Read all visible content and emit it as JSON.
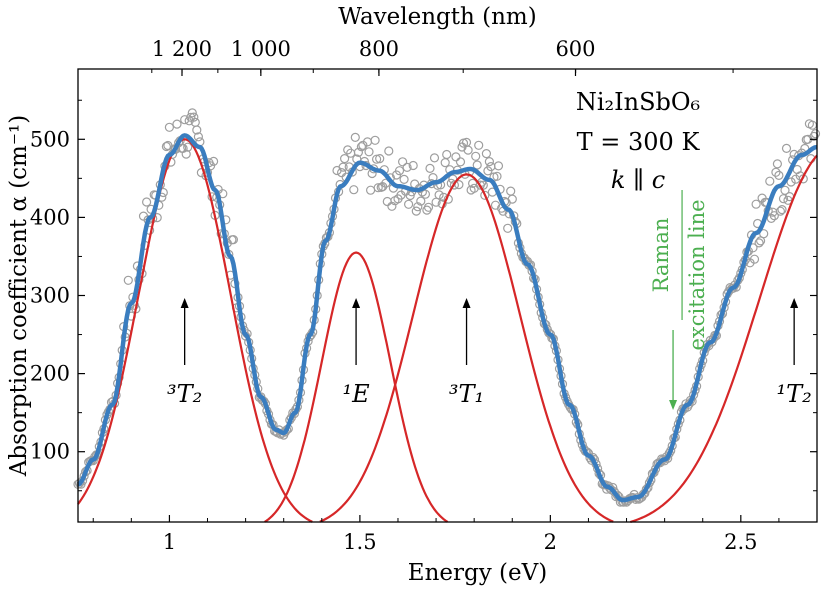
{
  "chart_data": {
    "type": "scatter",
    "xlabel": "Energy (eV)",
    "ylabel": "Absorption coefficient α (cm⁻¹)",
    "top_axis_label": "Wavelength (nm)",
    "xlim": [
      0.76,
      2.7
    ],
    "ylim": [
      10,
      590
    ],
    "x_ticks": [
      1,
      1.5,
      2,
      2.5
    ],
    "x_tick_labels": [
      "1",
      "1.5",
      "2",
      "2.5"
    ],
    "y_ticks": [
      100,
      200,
      300,
      400,
      500
    ],
    "y_tick_labels": [
      "100",
      "200",
      "300",
      "400",
      "500"
    ],
    "top_ticks": [
      {
        "label": "1 200",
        "energy": 1.033
      },
      {
        "label": "1 000",
        "energy": 1.24
      },
      {
        "label": "800",
        "energy": 1.55
      },
      {
        "label": "600",
        "energy": 2.066
      }
    ],
    "info_text": {
      "compound": "Ni₂InSbO₆",
      "temperature": "T = 300 K",
      "polarization": "k ∥ c"
    },
    "raman_label": [
      "Raman",
      "excitation line"
    ],
    "raman_energy": 2.33,
    "peak_labels": [
      {
        "label": "³T₂",
        "energy": 1.04
      },
      {
        "label": "¹E",
        "energy": 1.49
      },
      {
        "label": "³T₁",
        "energy": 1.78
      },
      {
        "label": "¹T₂",
        "energy": 2.64
      }
    ],
    "gaussian_components": [
      {
        "center": 1.04,
        "amplitude": 500,
        "sigma": 0.12
      },
      {
        "center": 1.49,
        "amplitude": 355,
        "sigma": 0.09
      },
      {
        "center": 1.78,
        "amplitude": 455,
        "sigma": 0.14
      },
      {
        "center": 2.74,
        "amplitude": 490,
        "sigma": 0.19
      }
    ],
    "series": [
      {
        "values_note": "",
        "fit": [
          [
            0.76,
            58
          ],
          [
            0.8,
            90
          ],
          [
            0.85,
            160
          ],
          [
            0.9,
            290
          ],
          [
            0.95,
            400
          ],
          [
            1.0,
            480
          ],
          [
            1.04,
            505
          ],
          [
            1.08,
            490
          ],
          [
            1.12,
            435
          ],
          [
            1.16,
            350
          ],
          [
            1.2,
            250
          ],
          [
            1.24,
            170
          ],
          [
            1.28,
            128
          ],
          [
            1.3,
            124
          ],
          [
            1.33,
            150
          ],
          [
            1.37,
            250
          ],
          [
            1.41,
            370
          ],
          [
            1.45,
            440
          ],
          [
            1.5,
            470
          ],
          [
            1.55,
            460
          ],
          [
            1.6,
            440
          ],
          [
            1.65,
            435
          ],
          [
            1.7,
            445
          ],
          [
            1.75,
            458
          ],
          [
            1.79,
            462
          ],
          [
            1.84,
            448
          ],
          [
            1.89,
            410
          ],
          [
            1.94,
            340
          ],
          [
            2.0,
            250
          ],
          [
            2.05,
            160
          ],
          [
            2.1,
            95
          ],
          [
            2.15,
            55
          ],
          [
            2.19,
            38
          ],
          [
            2.23,
            42
          ],
          [
            2.3,
            90
          ],
          [
            2.36,
            160
          ],
          [
            2.42,
            240
          ],
          [
            2.48,
            310
          ],
          [
            2.54,
            380
          ],
          [
            2.6,
            440
          ],
          [
            2.66,
            480
          ],
          [
            2.7,
            490
          ]
        ]
      }
    ]
  }
}
